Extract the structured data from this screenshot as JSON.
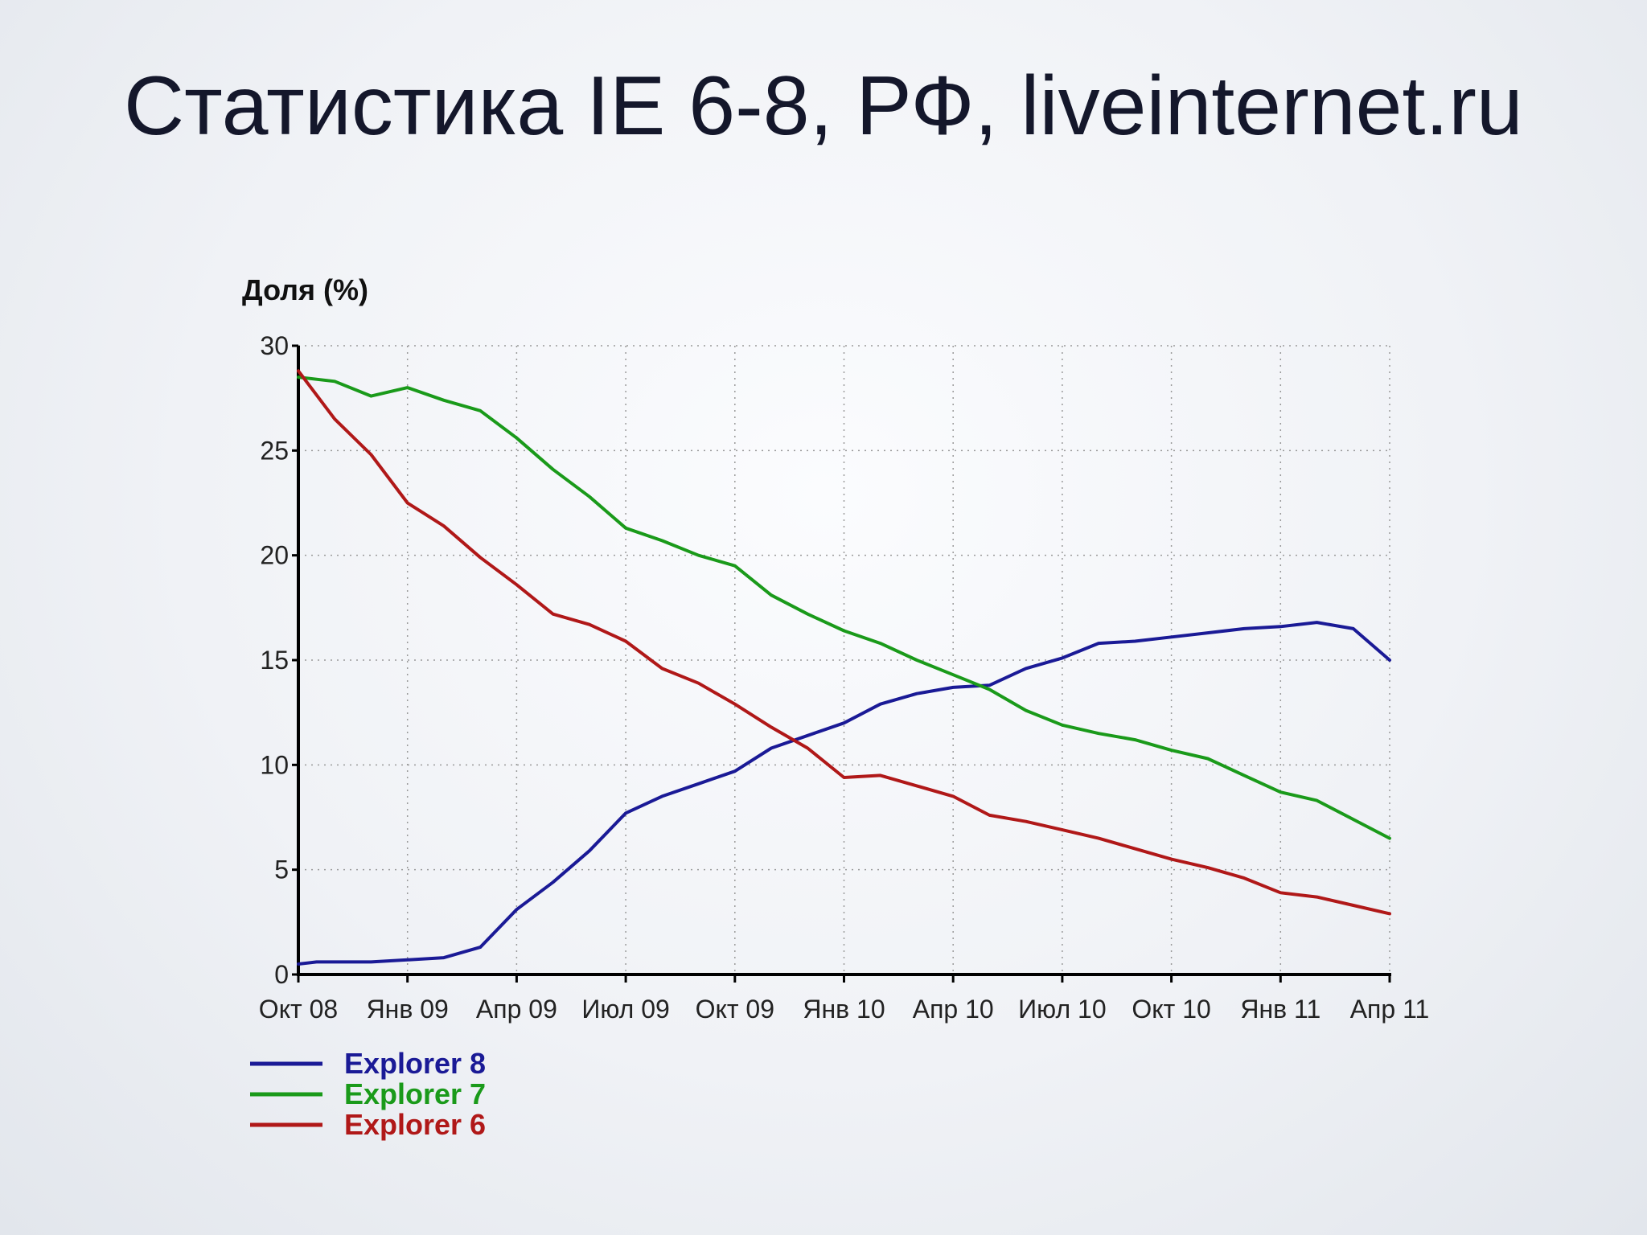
{
  "slide": {
    "title": "Статистика IE 6-8, РФ, liveinternet.ru"
  },
  "chart_data": {
    "type": "line",
    "title": "",
    "xlabel": "",
    "ylabel": "Доля (%)",
    "ylim": [
      0,
      30
    ],
    "yticks": [
      0,
      5,
      10,
      15,
      20,
      25,
      30
    ],
    "grid": true,
    "legend_position": "bottom-left",
    "x_ticks": [
      "Окт 08",
      "Янв 09",
      "Апр 09",
      "Июл 09",
      "Окт 09",
      "Янв 10",
      "Апр 10",
      "Июл 10",
      "Окт 10",
      "Янв 11",
      "Апр 11"
    ],
    "x_range": [
      0,
      30
    ],
    "series": [
      {
        "name": "Explorer 8",
        "color": "#1a1a96",
        "points": [
          [
            0,
            0.5
          ],
          [
            0.5,
            0.6
          ],
          [
            1,
            0.6
          ],
          [
            2,
            0.6
          ],
          [
            3,
            0.7
          ],
          [
            4,
            0.8
          ],
          [
            5,
            1.3
          ],
          [
            6,
            3.1
          ],
          [
            7,
            4.4
          ],
          [
            8,
            5.9
          ],
          [
            9,
            7.7
          ],
          [
            10,
            8.5
          ],
          [
            11,
            9.1
          ],
          [
            12,
            9.7
          ],
          [
            13,
            10.8
          ],
          [
            14,
            11.4
          ],
          [
            15,
            12.0
          ],
          [
            16,
            12.9
          ],
          [
            17,
            13.4
          ],
          [
            18,
            13.7
          ],
          [
            19,
            13.8
          ],
          [
            20,
            14.6
          ],
          [
            21,
            15.1
          ],
          [
            22,
            15.8
          ],
          [
            23,
            15.9
          ],
          [
            24,
            16.1
          ],
          [
            25,
            16.3
          ],
          [
            26,
            16.5
          ],
          [
            27,
            16.6
          ],
          [
            28,
            16.8
          ],
          [
            29,
            16.5
          ],
          [
            30,
            15.0
          ]
        ]
      },
      {
        "name": "Explorer 7",
        "color": "#1a9a1a",
        "points": [
          [
            0,
            28.5
          ],
          [
            1,
            28.3
          ],
          [
            2,
            27.6
          ],
          [
            3,
            28.0
          ],
          [
            4,
            27.4
          ],
          [
            5,
            26.9
          ],
          [
            6,
            25.6
          ],
          [
            7,
            24.1
          ],
          [
            8,
            22.8
          ],
          [
            9,
            21.3
          ],
          [
            10,
            20.7
          ],
          [
            11,
            20.0
          ],
          [
            12,
            19.5
          ],
          [
            13,
            18.1
          ],
          [
            14,
            17.2
          ],
          [
            15,
            16.4
          ],
          [
            16,
            15.8
          ],
          [
            17,
            15.0
          ],
          [
            18,
            14.3
          ],
          [
            19,
            13.6
          ],
          [
            20,
            12.6
          ],
          [
            21,
            11.9
          ],
          [
            22,
            11.5
          ],
          [
            23,
            11.2
          ],
          [
            24,
            10.7
          ],
          [
            25,
            10.3
          ],
          [
            26,
            9.5
          ],
          [
            27,
            8.7
          ],
          [
            28,
            8.3
          ],
          [
            29,
            7.4
          ],
          [
            30,
            6.5
          ]
        ]
      },
      {
        "name": "Explorer 6",
        "color": "#b01818",
        "points": [
          [
            0,
            28.8
          ],
          [
            1,
            26.5
          ],
          [
            2,
            24.8
          ],
          [
            3,
            22.5
          ],
          [
            4,
            21.4
          ],
          [
            5,
            19.9
          ],
          [
            6,
            18.6
          ],
          [
            7,
            17.2
          ],
          [
            8,
            16.7
          ],
          [
            9,
            15.9
          ],
          [
            10,
            14.6
          ],
          [
            11,
            13.9
          ],
          [
            12,
            12.9
          ],
          [
            13,
            11.8
          ],
          [
            14,
            10.8
          ],
          [
            15,
            9.4
          ],
          [
            16,
            9.5
          ],
          [
            17,
            9.0
          ],
          [
            18,
            8.5
          ],
          [
            19,
            7.6
          ],
          [
            20,
            7.3
          ],
          [
            21,
            6.9
          ],
          [
            22,
            6.5
          ],
          [
            23,
            6.0
          ],
          [
            24,
            5.5
          ],
          [
            25,
            5.1
          ],
          [
            26,
            4.6
          ],
          [
            27,
            3.9
          ],
          [
            28,
            3.7
          ],
          [
            29,
            3.3
          ],
          [
            30,
            2.9
          ]
        ]
      }
    ]
  }
}
